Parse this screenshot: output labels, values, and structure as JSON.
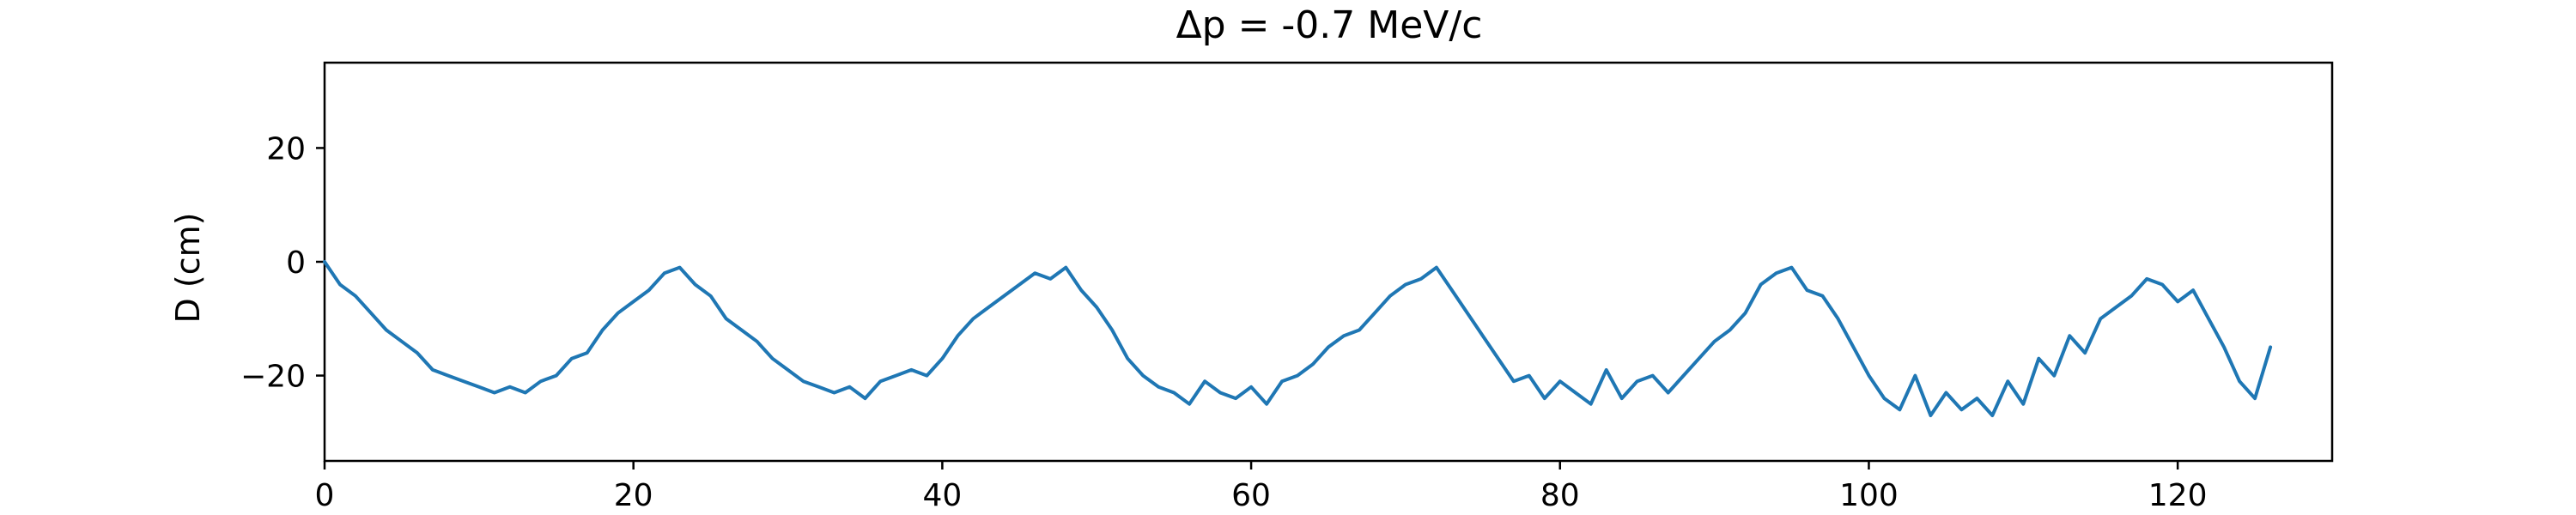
{
  "chart_data": {
    "type": "line",
    "title": "Δp = -0.7 MeV/c",
    "xlabel": "",
    "ylabel": "D (cm)",
    "xlim": [
      0,
      130
    ],
    "ylim": [
      -35,
      35
    ],
    "xticks": [
      0,
      20,
      40,
      60,
      80,
      100,
      120
    ],
    "yticks": [
      -20,
      0,
      20
    ],
    "grid": false,
    "legend": "none",
    "color": "#1f77b4",
    "series": [
      {
        "name": "",
        "x": [
          0,
          1,
          2,
          3,
          4,
          5,
          6,
          7,
          8,
          9,
          10,
          11,
          12,
          13,
          14,
          15,
          16,
          17,
          18,
          19,
          20,
          21,
          22,
          23,
          24,
          25,
          26,
          27,
          28,
          29,
          30,
          31,
          32,
          33,
          34,
          35,
          36,
          37,
          38,
          39,
          40,
          41,
          42,
          43,
          44,
          45,
          46,
          47,
          48,
          49,
          50,
          51,
          52,
          53,
          54,
          55,
          56,
          57,
          58,
          59,
          60,
          61,
          62,
          63,
          64,
          65,
          66,
          67,
          68,
          69,
          70,
          71,
          72,
          73,
          74,
          75,
          76,
          77,
          78,
          79,
          80,
          81,
          82,
          83,
          84,
          85,
          86,
          87,
          88,
          89,
          90,
          91,
          92,
          93,
          94,
          95,
          96,
          97,
          98,
          99,
          100,
          101,
          102,
          103,
          104,
          105,
          106,
          107,
          108,
          109,
          110,
          111,
          112,
          113,
          114,
          115,
          116,
          117,
          118,
          119,
          120,
          121,
          122,
          123,
          124,
          125,
          126
        ],
        "y": [
          0,
          -4,
          -6,
          -9,
          -12,
          -14,
          -16,
          -19,
          -20,
          -21,
          -22,
          -23,
          -22,
          -23,
          -21,
          -20,
          -17,
          -16,
          -12,
          -9,
          -7,
          -5,
          -2,
          -1,
          -4,
          -6,
          -10,
          -12,
          -14,
          -17,
          -19,
          -21,
          -22,
          -23,
          -22,
          -24,
          -21,
          -20,
          -19,
          -20,
          -17,
          -13,
          -10,
          -8,
          -6,
          -4,
          -2,
          -3,
          -1,
          -5,
          -8,
          -12,
          -17,
          -20,
          -22,
          -23,
          -25,
          -21,
          -23,
          -24,
          -22,
          -25,
          -21,
          -20,
          -18,
          -15,
          -13,
          -12,
          -9,
          -6,
          -4,
          -3,
          -1,
          -5,
          -9,
          -13,
          -17,
          -21,
          -20,
          -24,
          -21,
          -23,
          -25,
          -19,
          -24,
          -21,
          -20,
          -23,
          -20,
          -17,
          -14,
          -12,
          -9,
          -4,
          -2,
          -1,
          -5,
          -6,
          -10,
          -15,
          -20,
          -24,
          -26,
          -20,
          -27,
          -23,
          -26,
          -24,
          -27,
          -21,
          -25,
          -17,
          -20,
          -13,
          -16,
          -10,
          -8,
          -6,
          -3,
          -4,
          -7,
          -5,
          -10,
          -15,
          -21,
          -24,
          -15
        ]
      }
    ]
  }
}
